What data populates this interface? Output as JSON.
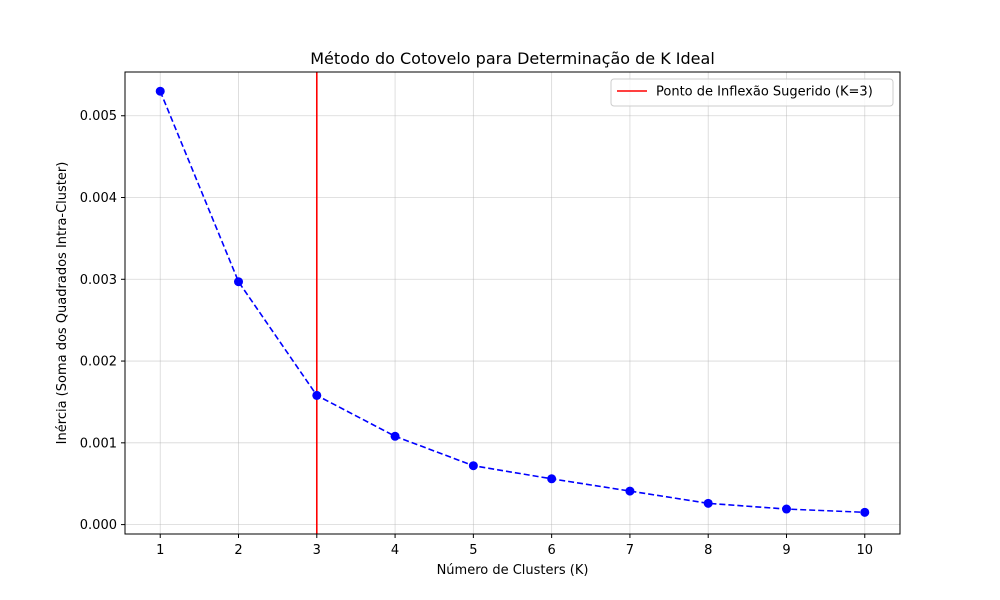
{
  "chart_data": {
    "type": "line",
    "title": "Método do Cotovelo para Determinação de K Ideal",
    "xlabel": "Número de Clusters (K)",
    "ylabel": "Inércia (Soma dos Quadrados Intra-Cluster)",
    "x": [
      1,
      2,
      3,
      4,
      5,
      6,
      7,
      8,
      9,
      10
    ],
    "series": [
      {
        "values": [
          0.0053,
          0.00297,
          0.00158,
          0.00108,
          0.00072,
          0.00056,
          0.00041,
          0.00026,
          0.00019,
          0.00015
        ],
        "color": "#0000ff",
        "line_style": "dashed",
        "marker": "circle"
      }
    ],
    "reference_line": {
      "x": 3,
      "label": "Ponto de Inflexão Sugerido (K=3)",
      "color": "#ff0000"
    },
    "xlim": [
      0.55,
      10.45
    ],
    "ylim": [
      -0.000115,
      0.005535
    ],
    "x_ticks": [
      1,
      2,
      3,
      4,
      5,
      6,
      7,
      8,
      9,
      10
    ],
    "x_tick_labels": [
      "1",
      "2",
      "3",
      "4",
      "5",
      "6",
      "7",
      "8",
      "9",
      "10"
    ],
    "y_ticks": [
      0,
      0.001,
      0.002,
      0.003,
      0.004,
      0.005
    ],
    "y_tick_labels": [
      "0.000",
      "0.001",
      "0.002",
      "0.003",
      "0.004",
      "0.005"
    ],
    "grid": true,
    "legend_position": "top-right"
  }
}
